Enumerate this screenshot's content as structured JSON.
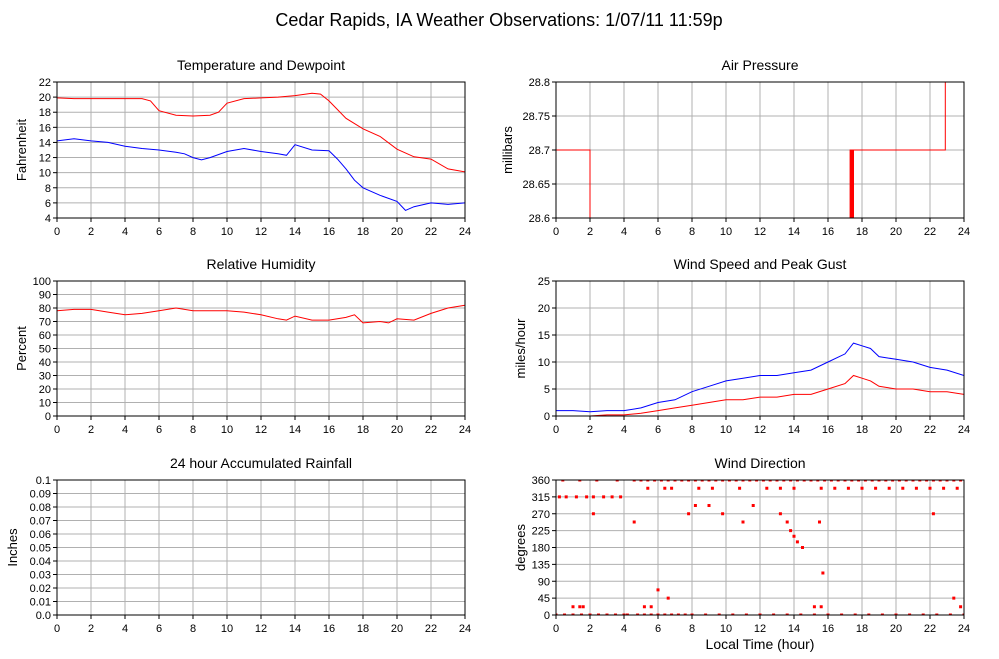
{
  "page": {
    "title": "Cedar Rapids, IA Weather Observations: 1/07/11 11:59p",
    "xlabel": "Local Time (hour)"
  },
  "chart_data": [
    {
      "id": "temp",
      "type": "line",
      "title": "Temperature and Dewpoint",
      "ylabel": "Fahrenheit",
      "xlabel": "",
      "xlim": [
        0,
        24
      ],
      "ylim": [
        4,
        22
      ],
      "xticks": [
        0,
        2,
        4,
        6,
        8,
        10,
        12,
        14,
        16,
        18,
        20,
        22,
        24
      ],
      "yticks": [
        4,
        6,
        8,
        10,
        12,
        14,
        16,
        18,
        20,
        22
      ],
      "grid": true,
      "series": [
        {
          "color": "#ff0000",
          "x": [
            0,
            1,
            2,
            3,
            4,
            5,
            5.5,
            6,
            7,
            8,
            9,
            9.5,
            10,
            11,
            12,
            13,
            14,
            15,
            15.5,
            16,
            17,
            18,
            19,
            20,
            21,
            22,
            23,
            24
          ],
          "y": [
            19.9,
            19.8,
            19.8,
            19.8,
            19.8,
            19.8,
            19.5,
            18.2,
            17.6,
            17.5,
            17.6,
            18.0,
            19.2,
            19.8,
            19.9,
            20.0,
            20.2,
            20.5,
            20.4,
            19.5,
            17.2,
            15.8,
            14.8,
            13.1,
            12.1,
            11.8,
            10.5,
            10.1
          ]
        },
        {
          "color": "#0000ff",
          "x": [
            0,
            1,
            2,
            3,
            4,
            5,
            6,
            7,
            7.5,
            8,
            8.5,
            9,
            10,
            11,
            12,
            13,
            13.5,
            14,
            15,
            16,
            16.5,
            17,
            17.5,
            18,
            19,
            20,
            20.5,
            21,
            22,
            23,
            24
          ],
          "y": [
            14.2,
            14.5,
            14.2,
            14.0,
            13.5,
            13.2,
            13.0,
            12.7,
            12.5,
            12.0,
            11.7,
            12.0,
            12.8,
            13.2,
            12.8,
            12.5,
            12.3,
            13.7,
            13.0,
            12.9,
            11.8,
            10.5,
            9.0,
            8.0,
            7.0,
            6.2,
            5.0,
            5.5,
            6.0,
            5.8,
            6.0
          ]
        }
      ]
    },
    {
      "id": "pressure",
      "type": "line",
      "title": "Air Pressure",
      "ylabel": "millibars",
      "xlabel": "",
      "xlim": [
        0,
        24
      ],
      "ylim": [
        28.6,
        28.8
      ],
      "xticks": [
        0,
        2,
        4,
        6,
        8,
        10,
        12,
        14,
        16,
        18,
        20,
        22,
        24
      ],
      "yticks": [
        "28.6",
        "28.65",
        "28.7",
        "28.75",
        "28.8"
      ],
      "grid": true,
      "series": [
        {
          "color": "#ff0000",
          "x": [
            0,
            2.0,
            2.0,
            17.3,
            17.3,
            17.35,
            17.35,
            17.4,
            17.4,
            17.45,
            17.45,
            17.5,
            17.5,
            22.9,
            22.9,
            24
          ],
          "y": [
            28.7,
            28.7,
            28.6,
            28.6,
            28.7,
            28.7,
            28.6,
            28.6,
            28.7,
            28.7,
            28.6,
            28.6,
            28.7,
            28.7,
            28.8,
            28.8
          ]
        }
      ]
    },
    {
      "id": "humidity",
      "type": "line",
      "title": "Relative Humidity",
      "ylabel": "Percent",
      "xlabel": "",
      "xlim": [
        0,
        24
      ],
      "ylim": [
        0,
        100
      ],
      "xticks": [
        0,
        2,
        4,
        6,
        8,
        10,
        12,
        14,
        16,
        18,
        20,
        22,
        24
      ],
      "yticks": [
        0,
        10,
        20,
        30,
        40,
        50,
        60,
        70,
        80,
        90,
        100
      ],
      "grid": true,
      "series": [
        {
          "color": "#ff0000",
          "x": [
            0,
            1,
            2,
            3,
            4,
            5,
            6,
            7,
            8,
            9,
            10,
            11,
            12,
            13,
            13.5,
            14,
            15,
            16,
            17,
            17.5,
            18,
            19,
            19.5,
            20,
            21,
            22,
            23,
            24
          ],
          "y": [
            78,
            79,
            79,
            77,
            75,
            76,
            78,
            80,
            78,
            78,
            78,
            77,
            75,
            72,
            71,
            74,
            71,
            71,
            73,
            75,
            69,
            70,
            69,
            72,
            71,
            76,
            80,
            82
          ]
        }
      ]
    },
    {
      "id": "wind",
      "type": "line",
      "title": "Wind Speed and Peak Gust",
      "ylabel": "miles/hour",
      "xlabel": "",
      "xlim": [
        0,
        24
      ],
      "ylim": [
        0,
        25
      ],
      "xticks": [
        0,
        2,
        4,
        6,
        8,
        10,
        12,
        14,
        16,
        18,
        20,
        22,
        24
      ],
      "yticks": [
        0,
        5,
        10,
        15,
        20,
        25
      ],
      "grid": true,
      "series": [
        {
          "color": "#0000ff",
          "x": [
            0,
            1,
            2,
            3,
            4,
            5,
            6,
            7,
            8,
            9,
            10,
            11,
            12,
            13,
            14,
            15,
            16,
            17,
            17.5,
            18,
            18.5,
            19,
            20,
            21,
            22,
            23,
            24
          ],
          "y": [
            1.0,
            1.0,
            0.8,
            1.0,
            1.0,
            1.5,
            2.5,
            3.0,
            4.5,
            5.5,
            6.5,
            7.0,
            7.5,
            7.5,
            8.0,
            8.5,
            10.0,
            11.5,
            13.5,
            13.0,
            12.5,
            11.0,
            10.5,
            10.0,
            9.0,
            8.5,
            7.5
          ]
        },
        {
          "color": "#ff0000",
          "x": [
            0,
            1,
            2,
            3,
            4,
            5,
            6,
            7,
            8,
            9,
            10,
            11,
            12,
            13,
            14,
            15,
            16,
            17,
            17.5,
            18,
            18.5,
            19,
            20,
            21,
            22,
            23,
            24
          ],
          "y": [
            0.0,
            0.0,
            0.0,
            0.2,
            0.2,
            0.5,
            1.0,
            1.5,
            2.0,
            2.5,
            3.0,
            3.0,
            3.5,
            3.5,
            4.0,
            4.0,
            5.0,
            6.0,
            7.5,
            7.0,
            6.5,
            5.5,
            5.0,
            5.0,
            4.5,
            4.5,
            4.0
          ]
        }
      ]
    },
    {
      "id": "rain",
      "type": "line",
      "title": "24 hour Accumulated Rainfall",
      "ylabel": "Inches",
      "xlabel": "",
      "xlim": [
        0,
        24
      ],
      "ylim": [
        0,
        0.1
      ],
      "xticks": [
        0,
        2,
        4,
        6,
        8,
        10,
        12,
        14,
        16,
        18,
        20,
        22,
        24
      ],
      "yticks": [
        "0.0",
        "0.01",
        "0.02",
        "0.03",
        "0.04",
        "0.05",
        "0.06",
        "0.07",
        "0.08",
        "0.09",
        "0.1"
      ],
      "grid": true,
      "series": [
        {
          "color": "#ff0000",
          "x": [
            0,
            24
          ],
          "y": [
            0,
            0
          ]
        }
      ]
    },
    {
      "id": "direction",
      "type": "scatter",
      "title": "Wind Direction",
      "ylabel": "degrees",
      "xlabel": "Local Time (hour)",
      "xlim": [
        0,
        24
      ],
      "ylim": [
        0,
        360
      ],
      "xticks": [
        0,
        2,
        4,
        6,
        8,
        10,
        12,
        14,
        16,
        18,
        20,
        22,
        24
      ],
      "yticks": [
        0,
        45,
        90,
        135,
        180,
        225,
        270,
        315,
        360
      ],
      "grid": true,
      "series": [
        {
          "color": "#ff0000",
          "x": [
            0.0,
            0.5,
            1.0,
            1.5,
            2.0,
            2.5,
            3.0,
            3.5,
            4.0,
            0.2,
            0.6,
            1.2,
            1.8,
            2.2,
            2.8,
            3.3,
            3.8,
            0.4,
            1.4,
            2.4,
            3.6,
            4.6,
            5.0,
            5.4,
            5.8,
            6.2,
            6.6,
            7.0,
            7.4,
            7.8,
            8.2,
            8.6,
            9.0,
            9.4,
            9.8,
            10.2,
            10.6,
            11.0,
            11.4,
            11.8,
            12.2,
            12.6,
            13.0,
            13.4,
            13.8,
            14.2,
            14.6,
            15.0,
            15.4,
            15.8,
            16.2,
            16.6,
            17.0,
            17.4,
            17.8,
            18.2,
            18.6,
            19.0,
            19.4,
            19.8,
            20.2,
            20.6,
            21.0,
            21.4,
            21.8,
            22.2,
            22.6,
            23.0,
            23.4,
            23.8,
            4.2,
            4.8,
            5.2,
            5.6,
            6.0,
            6.4,
            6.8,
            7.2,
            7.6,
            8.0,
            8.8,
            9.6,
            10.4,
            11.2,
            12.0,
            12.8,
            13.6,
            14.4,
            15.2,
            16.0,
            16.8,
            17.6,
            18.4,
            19.2,
            20.0,
            20.8,
            21.6,
            22.4,
            23.2,
            24.0,
            5.4,
            6.4,
            6.8,
            8.4,
            9.2,
            10.8,
            12.4,
            13.2,
            14.0,
            15.6,
            16.4,
            17.2,
            18.0,
            18.8,
            19.6,
            20.4,
            21.2,
            22.0,
            22.8,
            23.6,
            13.2,
            13.6,
            13.8,
            14.0,
            14.2,
            14.5,
            15.5,
            15.7,
            4.6,
            2.2,
            9.8,
            11.0,
            22.2,
            5.2,
            5.6,
            6.6,
            1.0,
            1.4,
            1.6,
            6.0,
            15.2,
            15.6,
            23.4,
            23.8,
            9.0,
            11.6,
            7.8,
            8.2
          ],
          "y": [
            0,
            0,
            0,
            0,
            0,
            0,
            0,
            0,
            0,
            315,
            315,
            315,
            315,
            315,
            315,
            315,
            315,
            360,
            360,
            360,
            360,
            360,
            360,
            360,
            360,
            360,
            360,
            360,
            360,
            360,
            360,
            360,
            360,
            360,
            360,
            360,
            360,
            360,
            360,
            360,
            360,
            360,
            360,
            360,
            360,
            360,
            360,
            360,
            360,
            360,
            360,
            360,
            360,
            360,
            360,
            360,
            360,
            360,
            360,
            360,
            360,
            360,
            360,
            360,
            360,
            360,
            360,
            360,
            360,
            360,
            0,
            0,
            0,
            0,
            0,
            0,
            0,
            0,
            0,
            0,
            0,
            0,
            0,
            0,
            0,
            0,
            0,
            0,
            0,
            0,
            0,
            0,
            0,
            0,
            0,
            0,
            0,
            0,
            0,
            0,
            338,
            338,
            338,
            338,
            338,
            338,
            338,
            338,
            338,
            338,
            338,
            338,
            338,
            338,
            338,
            338,
            338,
            338,
            338,
            338,
            270,
            248,
            225,
            210,
            195,
            180,
            248,
            112,
            248,
            270,
            270,
            248,
            270,
            22,
            22,
            45,
            22,
            22,
            22,
            67,
            22,
            22,
            45,
            22,
            292,
            292,
            270,
            292
          ]
        }
      ]
    }
  ]
}
